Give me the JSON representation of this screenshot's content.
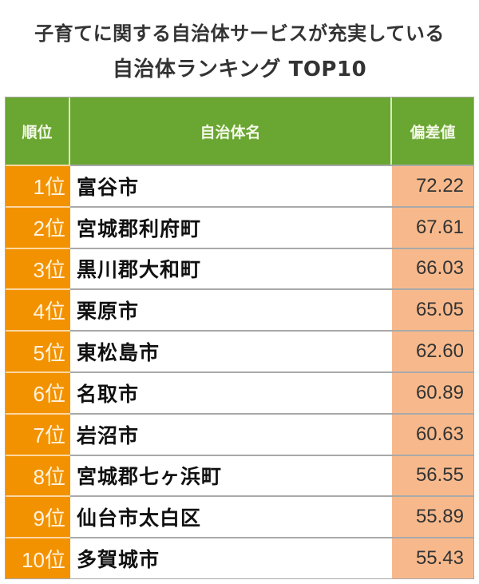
{
  "title": {
    "line1": "子育てに関する自治体サービスが充実している",
    "line2": "自治体ランキング TOP10"
  },
  "table": {
    "headers": {
      "rank": "順位",
      "name": "自治体名",
      "score": "偏差値"
    },
    "rows": [
      {
        "rank": "1位",
        "name": "富谷市",
        "score": "72.22"
      },
      {
        "rank": "2位",
        "name": "宮城郡利府町",
        "score": "67.61"
      },
      {
        "rank": "3位",
        "name": "黒川郡大和町",
        "score": "66.03"
      },
      {
        "rank": "4位",
        "name": "栗原市",
        "score": "65.05"
      },
      {
        "rank": "5位",
        "name": "東松島市",
        "score": "62.60"
      },
      {
        "rank": "6位",
        "name": "名取市",
        "score": "60.89"
      },
      {
        "rank": "7位",
        "name": "岩沼市",
        "score": "60.63"
      },
      {
        "rank": "8位",
        "name": "宮城郡七ヶ浜町",
        "score": "56.55"
      },
      {
        "rank": "9位",
        "name": "仙台市太白区",
        "score": "55.89"
      },
      {
        "rank": "10位",
        "name": "多賀城市",
        "score": "55.43"
      }
    ]
  },
  "colors": {
    "header_green": "#6aa632",
    "rank_orange": "#f39200",
    "score_peach": "#f7b98c",
    "border_gray": "#a9a9a9",
    "title_text": "#333333"
  }
}
